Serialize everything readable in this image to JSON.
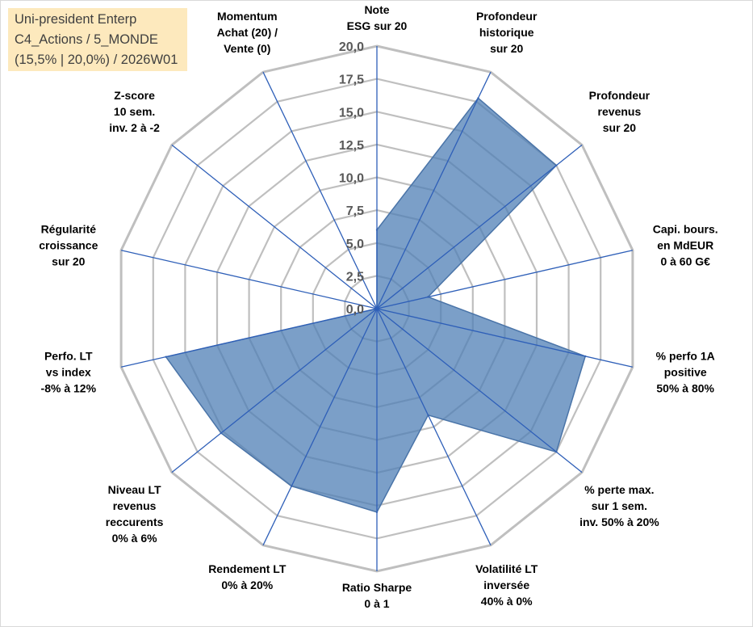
{
  "info_box": {
    "line1": "Uni-president Enterp",
    "line2": "C4_Actions / 5_MONDE",
    "line3": "(15,5% | 20,0%) / 2026W01"
  },
  "chart_data": {
    "type": "radar",
    "title": "",
    "rmin": 0,
    "rmax": 20,
    "ticks": [
      "0,0",
      "2,5",
      "5,0",
      "7,5",
      "10,0",
      "12,5",
      "15,0",
      "17,5",
      "20,0"
    ],
    "grid": true,
    "axes": [
      [
        "Note",
        "ESG sur 20"
      ],
      [
        "Profondeur",
        "historique",
        "sur 20"
      ],
      [
        "Profondeur",
        "revenus",
        "sur 20"
      ],
      [
        "Capi. bours.",
        "en MdEUR",
        "0 à 60 G€"
      ],
      [
        "% perfo 1A",
        "positive",
        "50% à 80%"
      ],
      [
        "% perte max.",
        "sur 1 sem.",
        "inv. 50% à 20%"
      ],
      [
        "Volatilité LT",
        "inversée",
        "40% à 0%"
      ],
      [
        "Ratio Sharpe",
        "0 à 1"
      ],
      [
        "Rendement LT",
        "0% à 20%"
      ],
      [
        "Niveau LT",
        "revenus",
        "reccurents",
        "0% à 6%"
      ],
      [
        "Perfo. LT",
        "vs index",
        "-8% à 12%"
      ],
      [
        "Régularité",
        "croissance",
        "sur 20"
      ],
      [
        "Z-score",
        "10 sem.",
        "inv. 2 à -2"
      ],
      [
        "Momentum",
        "Achat (20) /",
        "Vente (0)"
      ]
    ],
    "series": [
      {
        "values": [
          6.0,
          17.8,
          17.5,
          4.0,
          16.3,
          17.5,
          9.0,
          15.5,
          15.0,
          15.2,
          16.5,
          0,
          0,
          0
        ]
      }
    ],
    "colors": {
      "fill": "#4f7fb5",
      "stroke": "#4a74a8",
      "spoke": "#2e5fb8",
      "grid": "#bfbfbf"
    }
  }
}
